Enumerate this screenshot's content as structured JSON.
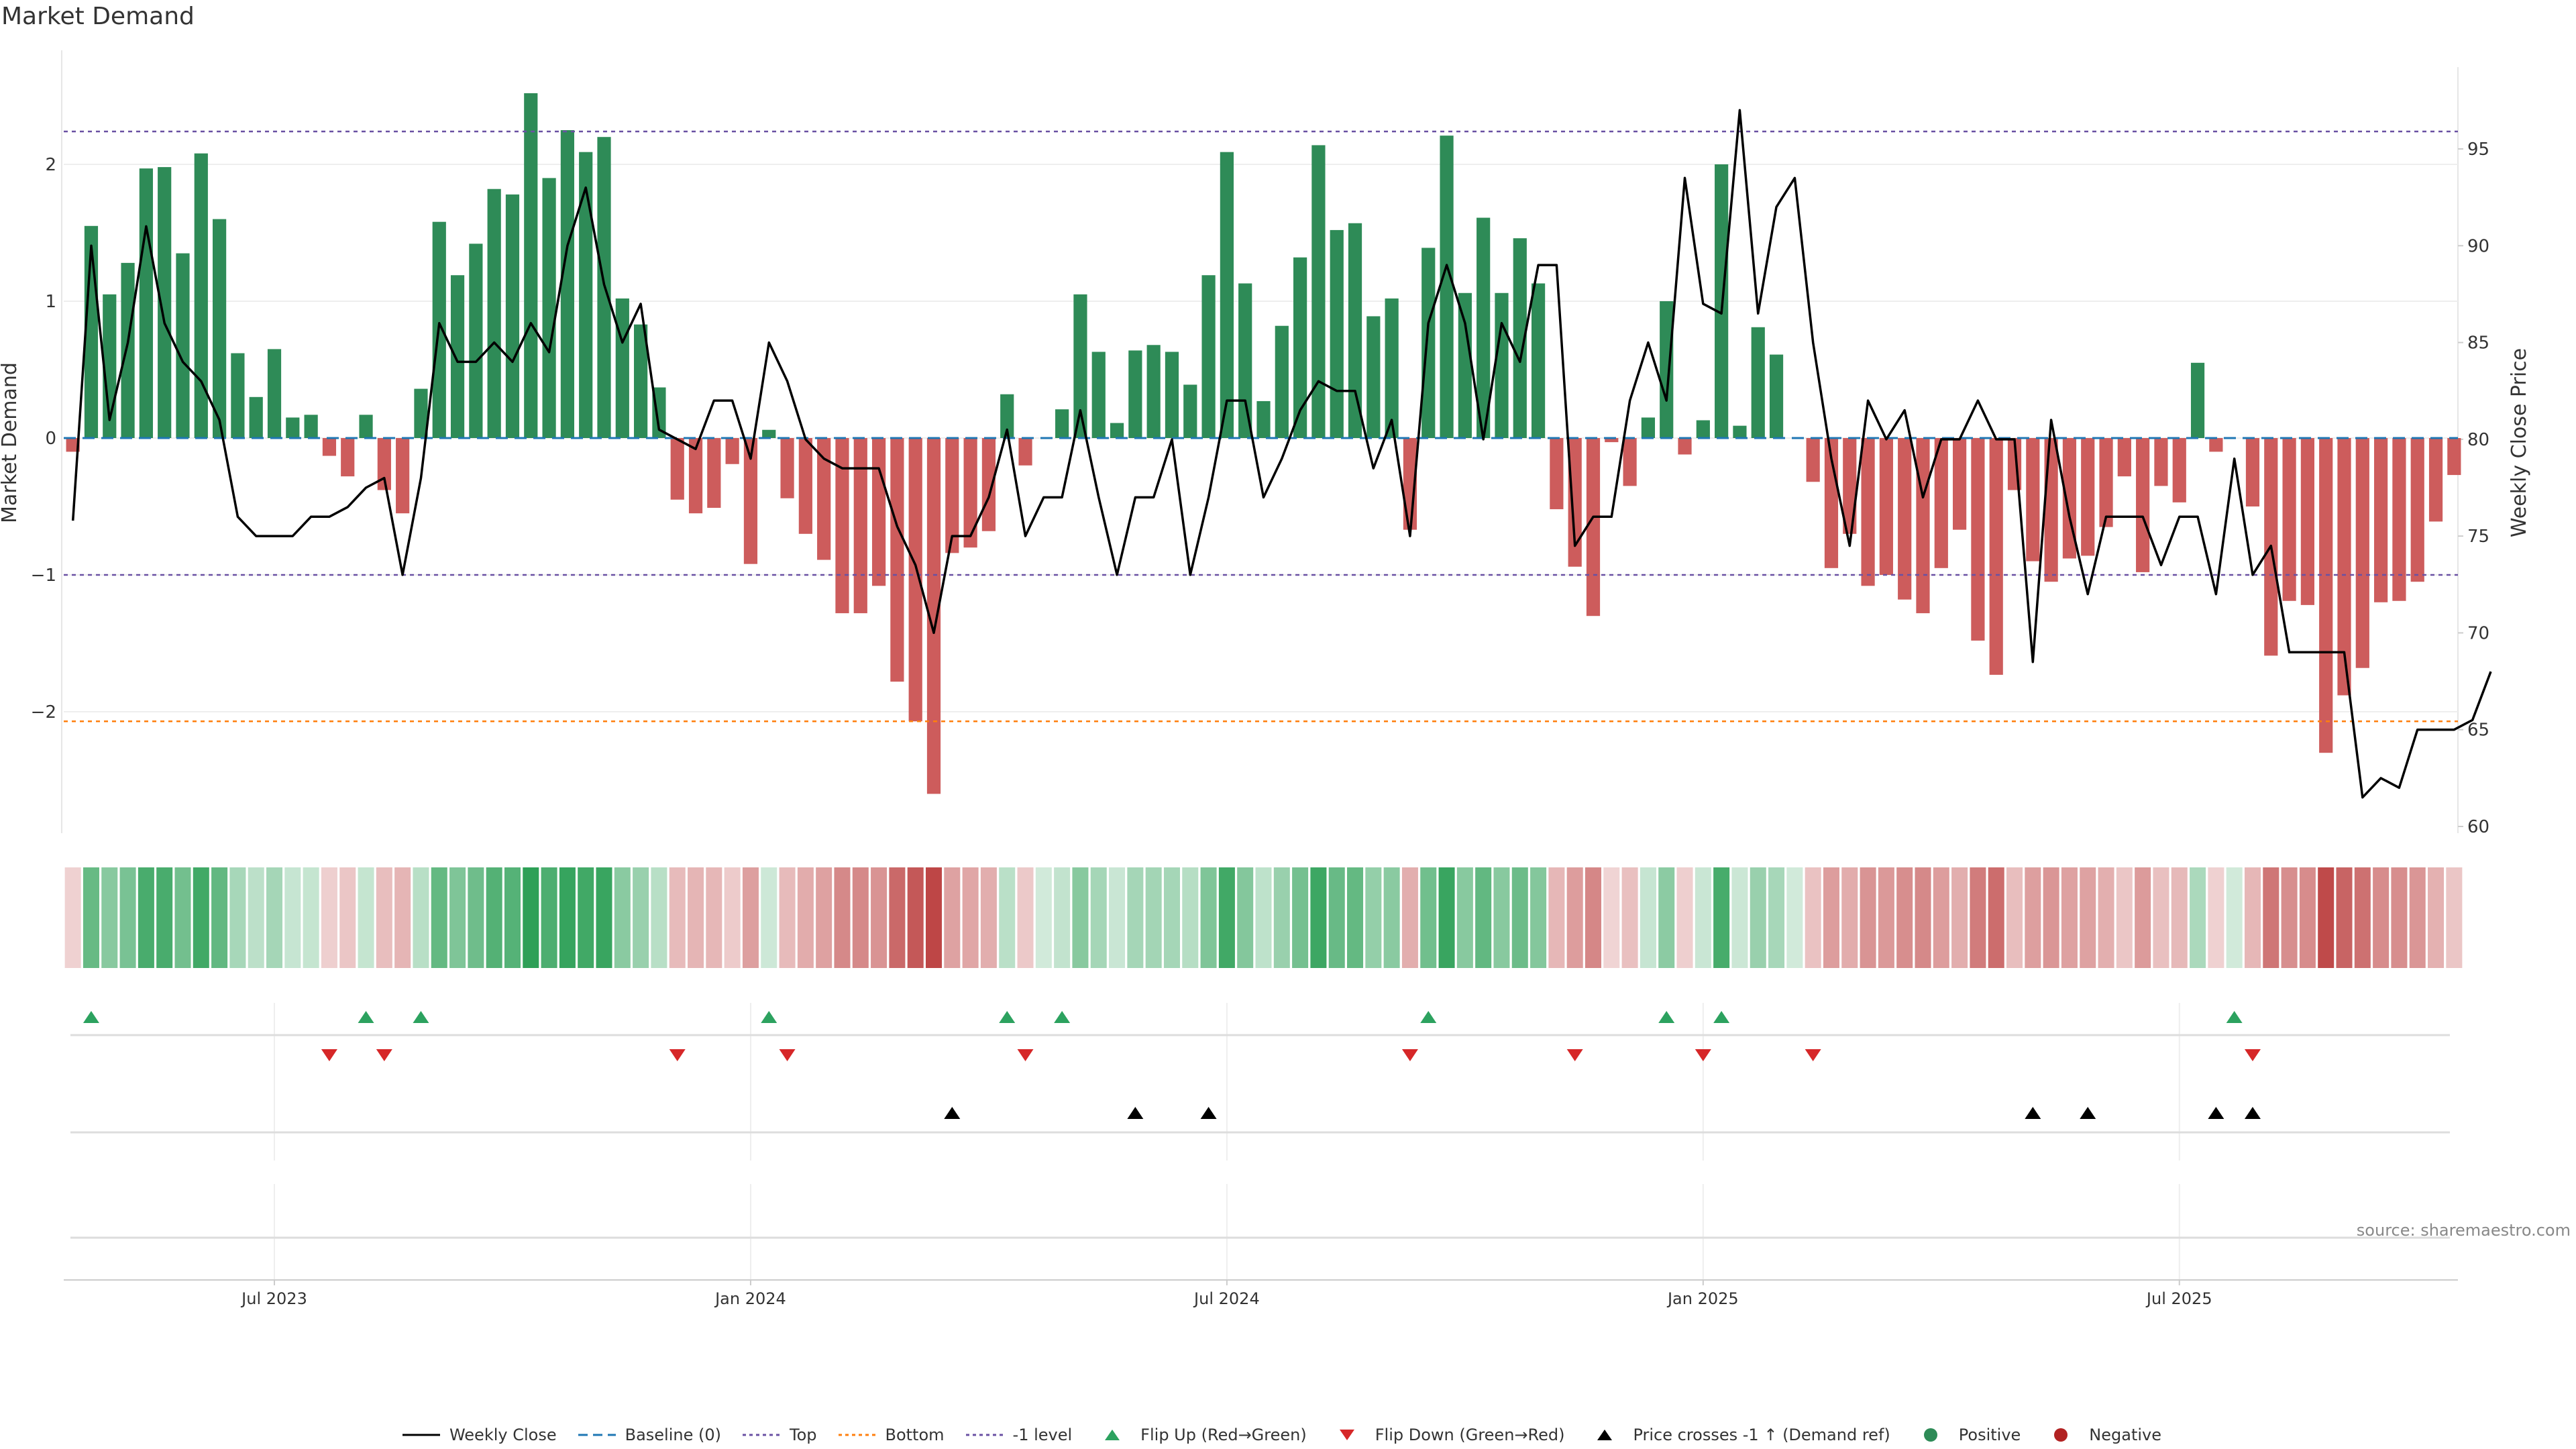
{
  "title": "Market Demand",
  "source_text": "source: sharemaestro.com",
  "colors": {
    "positive": "#2e8b57",
    "negative": "#cd5c5c",
    "price": "#000000",
    "baseline": "#1f77b4",
    "top": "#6a51a3",
    "bottom": "#ff7f0e",
    "minus1": "#6a51a3",
    "flip_up": "#2ca25f",
    "flip_down": "#d62728",
    "cross": "#000000"
  },
  "legend": [
    {
      "key": "weekly_close",
      "label": "Weekly Close",
      "kind": "line",
      "color": "#000000"
    },
    {
      "key": "baseline",
      "label": "Baseline (0)",
      "kind": "dash",
      "color": "#1f77b4"
    },
    {
      "key": "top",
      "label": "Top",
      "kind": "dot",
      "color": "#6a51a3"
    },
    {
      "key": "bottom",
      "label": "Bottom",
      "kind": "dot",
      "color": "#ff7f0e"
    },
    {
      "key": "minus1",
      "label": "-1 level",
      "kind": "dot",
      "color": "#6a51a3"
    },
    {
      "key": "flip_up",
      "label": "Flip Up (Red→Green)",
      "kind": "tri-up",
      "color": "#2ca25f"
    },
    {
      "key": "flip_down",
      "label": "Flip Down (Green→Red)",
      "kind": "tri-down",
      "color": "#d62728"
    },
    {
      "key": "cross",
      "label": "Price crosses -1 ↑ (Demand ref)",
      "kind": "tri-up",
      "color": "#000000"
    },
    {
      "key": "positive",
      "label": "Positive",
      "kind": "circle",
      "color": "#2e8b57"
    },
    {
      "key": "negative",
      "label": "Negative",
      "kind": "circle",
      "color": "#b22222"
    }
  ],
  "chart_data": {
    "type": "bar",
    "title": "Market Demand",
    "ylabel": "Market Demand",
    "y2label": "Weekly Close Price",
    "ylim": [
      -2.85,
      2.85
    ],
    "y2lim": [
      59.5,
      100.6
    ],
    "yticks": [
      -2,
      -1,
      0,
      1,
      2
    ],
    "y2ticks": [
      60,
      65,
      70,
      75,
      80,
      85,
      90,
      95
    ],
    "xticks": [
      {
        "label": "Jul 2023",
        "index": 11
      },
      {
        "label": "Jan 2024",
        "index": 37
      },
      {
        "label": "Jul 2024",
        "index": 63
      },
      {
        "label": "Jan 2025",
        "index": 89
      },
      {
        "label": "Jul 2025",
        "index": 115
      }
    ],
    "reference_lines": {
      "baseline": 0,
      "top": 2.24,
      "bottom": -2.07,
      "minus1": -1
    },
    "demand": [
      -0.1,
      1.55,
      1.05,
      1.28,
      1.97,
      1.98,
      1.35,
      2.08,
      1.6,
      0.62,
      0.3,
      0.65,
      0.15,
      0.17,
      -0.13,
      -0.28,
      0.17,
      -0.38,
      -0.55,
      0.36,
      1.58,
      1.19,
      1.42,
      1.82,
      1.78,
      2.52,
      1.9,
      2.25,
      2.09,
      2.2,
      1.02,
      0.83,
      0.37,
      -0.45,
      -0.55,
      -0.51,
      -0.19,
      -0.92,
      0.06,
      -0.44,
      -0.7,
      -0.89,
      -1.28,
      -1.28,
      -1.08,
      -1.78,
      -2.07,
      -2.6,
      -0.84,
      -0.8,
      -0.68,
      0.32,
      -0.2,
      0.0,
      0.21,
      1.05,
      0.63,
      0.11,
      0.64,
      0.68,
      0.63,
      0.39,
      1.19,
      2.09,
      1.13,
      0.27,
      0.82,
      1.32,
      2.14,
      1.52,
      1.57,
      0.89,
      1.02,
      -0.67,
      1.39,
      2.21,
      1.06,
      1.61,
      1.06,
      1.46,
      1.13,
      -0.52,
      -0.94,
      -1.3,
      -0.03,
      -0.35,
      0.15,
      1.0,
      -0.12,
      0.13,
      2.0,
      0.09,
      0.81,
      0.61,
      0.0,
      -0.32,
      -0.95,
      -0.7,
      -1.08,
      -1.0,
      -1.18,
      -1.28,
      -0.95,
      -0.67,
      -1.48,
      -1.73,
      -0.38,
      -0.9,
      -1.05,
      -0.88,
      -0.86,
      -0.65,
      -0.28,
      -0.98,
      -0.35,
      -0.47,
      0.55,
      -0.1,
      0.0,
      -0.5,
      -1.59,
      -1.19,
      -1.22,
      -2.3,
      -1.88,
      -1.68,
      -1.2,
      -1.19,
      -1.05,
      -0.61,
      -0.27
    ],
    "close": [
      75.8,
      90.0,
      81.0,
      85.0,
      91.0,
      86.0,
      84.0,
      83.0,
      81.0,
      76.0,
      75.0,
      75.0,
      75.0,
      76.0,
      76.0,
      76.5,
      77.5,
      78.0,
      73.0,
      78.0,
      86.0,
      84.0,
      84.0,
      85.0,
      84.0,
      86.0,
      84.5,
      90.0,
      93.0,
      88.0,
      85.0,
      87.0,
      80.5,
      80.0,
      79.5,
      82.0,
      82.0,
      79.0,
      85.0,
      83.0,
      80.0,
      79.0,
      78.5,
      78.5,
      78.5,
      75.5,
      73.5,
      70.0,
      75.0,
      75.0,
      77.0,
      80.5,
      75.0,
      77.0,
      77.0,
      81.5,
      77.0,
      73.0,
      77.0,
      77.0,
      80.0,
      73.0,
      77.0,
      82.0,
      82.0,
      77.0,
      79.0,
      81.5,
      83.0,
      82.5,
      82.5,
      78.5,
      81.0,
      75.0,
      86.0,
      89.0,
      86.0,
      80.0,
      86.0,
      84.0,
      89.0,
      89.0,
      74.5,
      76.0,
      76.0,
      82.0,
      85.0,
      82.0,
      93.5,
      87.0,
      86.5,
      97.0,
      86.5,
      92.0,
      93.5,
      85.0,
      79.0,
      74.5,
      82.0,
      80.0,
      81.5,
      77.0,
      80.0,
      80.0,
      82.0,
      80.0,
      80.0,
      68.5,
      81.0,
      76.0,
      72.0,
      76.0,
      76.0,
      76.0,
      73.5,
      76.0,
      76.0,
      72.0,
      79.0,
      73.0,
      74.5,
      69.0,
      69.0,
      69.0,
      69.0,
      61.5,
      62.5,
      62.0,
      65.0,
      65.0,
      65.0,
      65.5,
      68.0
    ],
    "flip_up": [
      1,
      16,
      19,
      38,
      51,
      54,
      74,
      87,
      90,
      118
    ],
    "flip_down": [
      14,
      17,
      33,
      39,
      52,
      73,
      82,
      89,
      95,
      119
    ],
    "price_cross": [
      48,
      58,
      62,
      107,
      110,
      117,
      119
    ]
  }
}
